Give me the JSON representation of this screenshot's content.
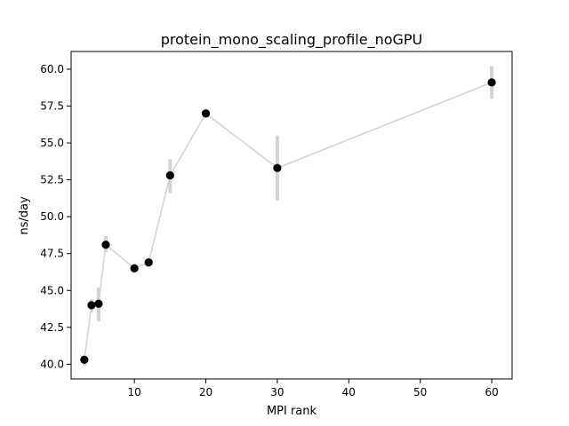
{
  "chart_data": {
    "type": "line",
    "title": "protein_mono_scaling_profile_noGPU",
    "xlabel": "MPI rank",
    "ylabel": "ns/day",
    "xlim": [
      1.15,
      62.85
    ],
    "ylim": [
      39.0,
      61.2
    ],
    "xticks": [
      10,
      20,
      30,
      40,
      50,
      60
    ],
    "yticks": [
      40.0,
      42.5,
      45.0,
      47.5,
      50.0,
      52.5,
      55.0,
      57.5,
      60.0
    ],
    "ytick_labels": [
      "40.0",
      "42.5",
      "45.0",
      "47.5",
      "50.0",
      "52.5",
      "55.0",
      "57.5",
      "60.0"
    ],
    "grid": false,
    "series": [
      {
        "x": [
          3,
          4,
          5,
          6,
          10,
          12,
          15,
          20,
          30,
          60
        ],
        "y": [
          40.3,
          44.0,
          44.1,
          48.1,
          46.5,
          46.9,
          52.8,
          57.0,
          53.3,
          59.1
        ],
        "yerr_low": [
          39.9,
          43.5,
          42.9,
          47.6,
          46.2,
          46.6,
          51.6,
          56.7,
          51.1,
          58.0
        ],
        "yerr_high": [
          40.6,
          44.4,
          45.2,
          48.7,
          46.8,
          47.2,
          53.9,
          57.3,
          55.5,
          60.2
        ]
      }
    ],
    "colors": {
      "line": "#d3d3d3",
      "errorbar": "#d3d3d3",
      "marker": "#000000"
    }
  }
}
